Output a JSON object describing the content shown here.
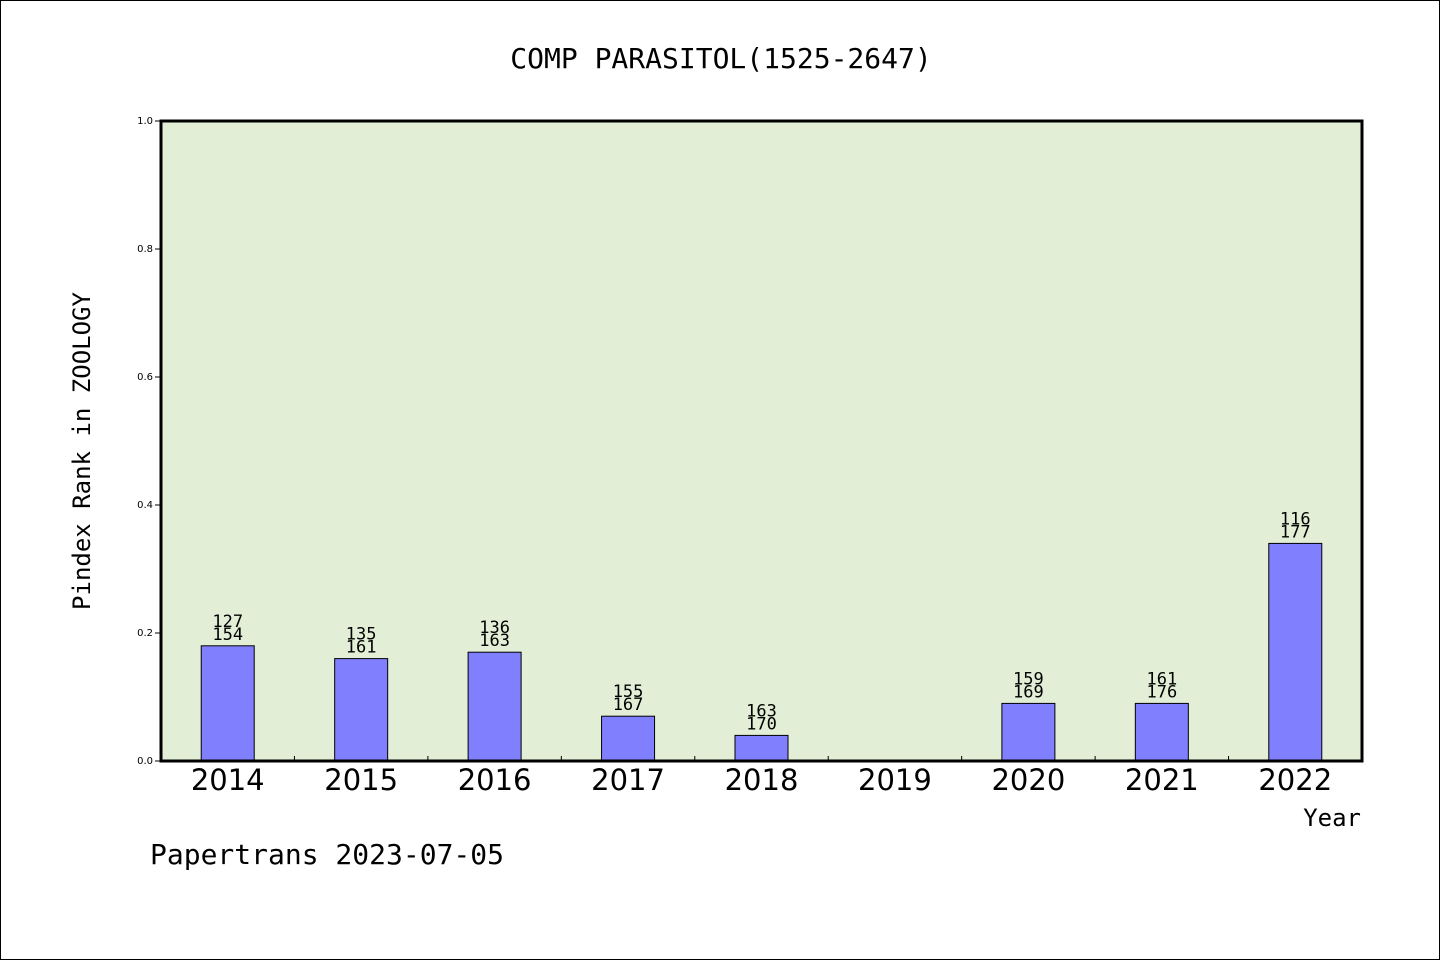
{
  "chart_data": {
    "type": "bar",
    "title": "COMP PARASITOL(1525-2647)",
    "xlabel": "Year",
    "ylabel": "Pindex Rank in ZOOLOGY",
    "ylim": [
      0,
      1.0
    ],
    "yticks": [
      "0.0",
      "0.2",
      "0.4",
      "0.6",
      "0.8",
      "1.0"
    ],
    "categories": [
      "2014",
      "2015",
      "2016",
      "2017",
      "2018",
      "2019",
      "2020",
      "2021",
      "2022"
    ],
    "values": [
      0.18,
      0.16,
      0.17,
      0.07,
      0.04,
      null,
      0.09,
      0.09,
      0.34
    ],
    "labels_top": [
      "127",
      "135",
      "136",
      "155",
      "163",
      "",
      "159",
      "161",
      "116"
    ],
    "labels_bottom": [
      "154",
      "161",
      "163",
      "167",
      "170",
      "",
      "169",
      "176",
      "177"
    ],
    "grid": false,
    "plot_background": "#e2efd6",
    "bar_color": "#8080ff"
  },
  "footer": "Papertrans 2023-07-05"
}
